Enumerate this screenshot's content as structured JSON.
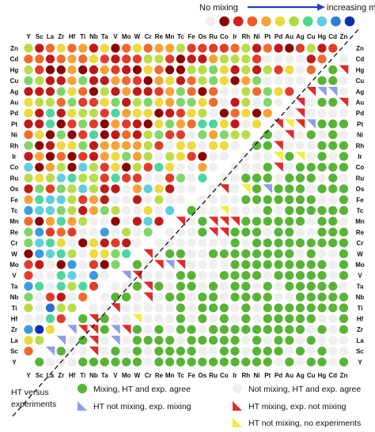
{
  "chart_data": {
    "type": "heatmap",
    "elements": [
      "Y",
      "Sc",
      "La",
      "Zr",
      "Hf",
      "Ti",
      "Nb",
      "Ta",
      "V",
      "Mo",
      "W",
      "Cr",
      "Re",
      "Mn",
      "Tc",
      "Fe",
      "Os",
      "Ru",
      "Co",
      "Ir",
      "Rh",
      "Ni",
      "Pt",
      "Pd",
      "Au",
      "Ag",
      "Cu",
      "Hg",
      "Cd",
      "Zn"
    ],
    "top_legend": {
      "left_label": "No mixing",
      "right_label": "increasing mixing",
      "scale_colors": [
        "#eeeeee",
        "#8b0000",
        "#d42020",
        "#f05a28",
        "#f7a234",
        "#e9d93a",
        "#a9dc44",
        "#4cd68a",
        "#5ecfe0",
        "#2a7fd9",
        "#0b2fb0"
      ]
    },
    "bottom_legend": {
      "title_line1": "HT versus",
      "title_line2": "experiments",
      "items": [
        {
          "label": "Mixing, HT and exp. agree",
          "color": "#57b435",
          "shape": "circle"
        },
        {
          "label": "Not mixing, HT and exp. agree",
          "color": "#efefef",
          "shape": "circle"
        },
        {
          "label": "HT not mixing, exp. mixing",
          "color": "#8d9ee6",
          "shape": "triangle"
        },
        {
          "label": "HT mixing, exp. not mixing",
          "color": "#e12a2a",
          "shape": "triangle"
        },
        {
          "label": "HT not mixing, no experiments",
          "color": "#f1ee3a",
          "shape": "triangle"
        }
      ]
    }
  }
}
